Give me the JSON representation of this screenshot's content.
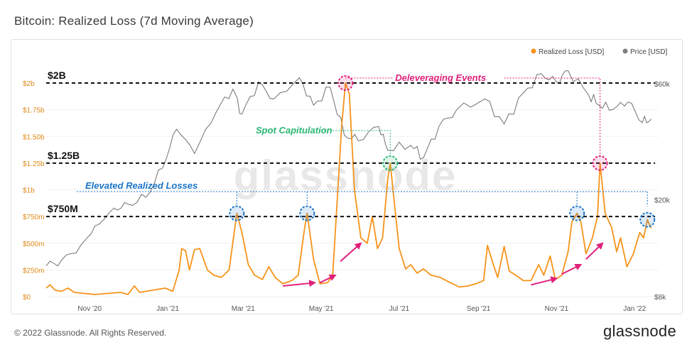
{
  "title": "Bitcoin: Realized Loss (7d Moving Average)",
  "footer": {
    "copyright": "© 2022 Glassnode. All Rights Reserved.",
    "logo": "glassnode"
  },
  "watermark": "glassnode",
  "colors": {
    "loss": "#f7931a",
    "price": "#707070",
    "deleverage": "#e0217b",
    "capitulation": "#2bb673",
    "elevated": "#1a74c8",
    "axis_left": "#e08a1a"
  },
  "chart_data": {
    "type": "line",
    "title": "Bitcoin: Realized Loss (7d Moving Average)",
    "legend": [
      {
        "name": "Realized Loss [USD]",
        "color": "#f7931a"
      },
      {
        "name": "Price [USD]",
        "color": "#808080"
      }
    ],
    "legend_position": "top-right",
    "x_ticks": [
      "Nov '20",
      "Jan '21",
      "Mar '21",
      "May '21",
      "Jul '21",
      "Sep '21",
      "Nov '21",
      "Jan '22"
    ],
    "y_left_ticks": [
      "$0",
      "$250m",
      "$500m",
      "$750m",
      "$1b",
      "$1.25b",
      "$1.50b",
      "$1.75b",
      "$2b"
    ],
    "y_left_range": [
      0,
      2000000000
    ],
    "y_right_ticks": [
      "$8k",
      "$20k",
      "$60k"
    ],
    "y_right_scale": "log",
    "series": [
      {
        "name": "Realized Loss [USD]",
        "unit": "USD",
        "points": [
          [
            "2020-09-28",
            80000000
          ],
          [
            "2020-10-01",
            110000000
          ],
          [
            "2020-10-05",
            60000000
          ],
          [
            "2020-10-10",
            50000000
          ],
          [
            "2020-10-15",
            80000000
          ],
          [
            "2020-10-20",
            40000000
          ],
          [
            "2020-10-28",
            30000000
          ],
          [
            "2020-11-05",
            20000000
          ],
          [
            "2020-11-15",
            30000000
          ],
          [
            "2020-11-25",
            40000000
          ],
          [
            "2020-12-01",
            20000000
          ],
          [
            "2020-12-06",
            100000000
          ],
          [
            "2020-12-10",
            40000000
          ],
          [
            "2020-12-20",
            60000000
          ],
          [
            "2020-12-30",
            80000000
          ],
          [
            "2021-01-05",
            50000000
          ],
          [
            "2021-01-10",
            250000000
          ],
          [
            "2021-01-12",
            450000000
          ],
          [
            "2021-01-15",
            430000000
          ],
          [
            "2021-01-18",
            250000000
          ],
          [
            "2021-01-22",
            440000000
          ],
          [
            "2021-01-26",
            450000000
          ],
          [
            "2021-02-01",
            250000000
          ],
          [
            "2021-02-06",
            200000000
          ],
          [
            "2021-02-12",
            180000000
          ],
          [
            "2021-02-18",
            250000000
          ],
          [
            "2021-02-24",
            780000000
          ],
          [
            "2021-02-28",
            600000000
          ],
          [
            "2021-03-05",
            300000000
          ],
          [
            "2021-03-10",
            200000000
          ],
          [
            "2021-03-16",
            160000000
          ],
          [
            "2021-03-21",
            280000000
          ],
          [
            "2021-03-26",
            180000000
          ],
          [
            "2021-04-01",
            120000000
          ],
          [
            "2021-04-08",
            150000000
          ],
          [
            "2021-04-13",
            200000000
          ],
          [
            "2021-04-18",
            640000000
          ],
          [
            "2021-04-20",
            780000000
          ],
          [
            "2021-04-25",
            350000000
          ],
          [
            "2021-04-30",
            120000000
          ],
          [
            "2021-05-06",
            130000000
          ],
          [
            "2021-05-10",
            200000000
          ],
          [
            "2021-05-14",
            1000000000
          ],
          [
            "2021-05-17",
            1600000000
          ],
          [
            "2021-05-20",
            2000000000
          ],
          [
            "2021-05-23",
            1900000000
          ],
          [
            "2021-05-27",
            1000000000
          ],
          [
            "2021-06-01",
            550000000
          ],
          [
            "2021-06-06",
            500000000
          ],
          [
            "2021-06-10",
            750000000
          ],
          [
            "2021-06-14",
            450000000
          ],
          [
            "2021-06-18",
            550000000
          ],
          [
            "2021-06-22",
            1100000000
          ],
          [
            "2021-06-24",
            1250000000
          ],
          [
            "2021-06-27",
            900000000
          ],
          [
            "2021-07-01",
            450000000
          ],
          [
            "2021-07-06",
            260000000
          ],
          [
            "2021-07-10",
            300000000
          ],
          [
            "2021-07-15",
            220000000
          ],
          [
            "2021-07-20",
            260000000
          ],
          [
            "2021-07-26",
            200000000
          ],
          [
            "2021-08-02",
            180000000
          ],
          [
            "2021-08-10",
            130000000
          ],
          [
            "2021-08-17",
            90000000
          ],
          [
            "2021-08-24",
            100000000
          ],
          [
            "2021-08-30",
            120000000
          ],
          [
            "2021-09-05",
            150000000
          ],
          [
            "2021-09-08",
            480000000
          ],
          [
            "2021-09-12",
            320000000
          ],
          [
            "2021-09-16",
            180000000
          ],
          [
            "2021-09-21",
            470000000
          ],
          [
            "2021-09-25",
            240000000
          ],
          [
            "2021-09-30",
            200000000
          ],
          [
            "2021-10-06",
            150000000
          ],
          [
            "2021-10-12",
            150000000
          ],
          [
            "2021-10-18",
            300000000
          ],
          [
            "2021-10-22",
            200000000
          ],
          [
            "2021-10-27",
            380000000
          ],
          [
            "2021-10-31",
            160000000
          ],
          [
            "2021-11-05",
            200000000
          ],
          [
            "2021-11-10",
            420000000
          ],
          [
            "2021-11-13",
            700000000
          ],
          [
            "2021-11-17",
            780000000
          ],
          [
            "2021-11-20",
            700000000
          ],
          [
            "2021-11-24",
            400000000
          ],
          [
            "2021-11-29",
            550000000
          ],
          [
            "2021-12-03",
            750000000
          ],
          [
            "2021-12-05",
            1250000000
          ],
          [
            "2021-12-09",
            780000000
          ],
          [
            "2021-12-14",
            650000000
          ],
          [
            "2021-12-18",
            420000000
          ],
          [
            "2021-12-21",
            550000000
          ],
          [
            "2021-12-26",
            280000000
          ],
          [
            "2021-12-31",
            400000000
          ],
          [
            "2022-01-05",
            600000000
          ],
          [
            "2022-01-08",
            550000000
          ],
          [
            "2022-01-11",
            720000000
          ],
          [
            "2022-01-14",
            640000000
          ]
        ]
      },
      {
        "name": "Price [USD]",
        "unit": "USD",
        "points": [
          [
            "2020-09-28",
            10700
          ],
          [
            "2020-10-10",
            11300
          ],
          [
            "2020-10-25",
            13000
          ],
          [
            "2020-11-05",
            15600
          ],
          [
            "2020-11-20",
            18500
          ],
          [
            "2020-12-01",
            19200
          ],
          [
            "2020-12-15",
            20500
          ],
          [
            "2020-12-28",
            27000
          ],
          [
            "2021-01-08",
            39000
          ],
          [
            "2021-01-22",
            31000
          ],
          [
            "2021-02-08",
            46000
          ],
          [
            "2021-02-21",
            57000
          ],
          [
            "2021-02-28",
            45000
          ],
          [
            "2021-03-13",
            61000
          ],
          [
            "2021-03-25",
            52000
          ],
          [
            "2021-04-14",
            63500
          ],
          [
            "2021-04-25",
            49000
          ],
          [
            "2021-05-08",
            58000
          ],
          [
            "2021-05-19",
            37000
          ],
          [
            "2021-05-30",
            35000
          ],
          [
            "2021-06-15",
            40000
          ],
          [
            "2021-06-22",
            32000
          ],
          [
            "2021-07-10",
            33500
          ],
          [
            "2021-07-20",
            29800
          ],
          [
            "2021-08-01",
            40000
          ],
          [
            "2021-08-15",
            47000
          ],
          [
            "2021-09-06",
            52000
          ],
          [
            "2021-09-21",
            41000
          ],
          [
            "2021-10-06",
            55000
          ],
          [
            "2021-10-20",
            66000
          ],
          [
            "2021-11-01",
            61000
          ],
          [
            "2021-11-10",
            68000
          ],
          [
            "2021-11-26",
            54000
          ],
          [
            "2021-12-04",
            49000
          ],
          [
            "2021-12-15",
            47000
          ],
          [
            "2021-12-27",
            50500
          ],
          [
            "2022-01-07",
            41500
          ],
          [
            "2022-01-14",
            43000
          ]
        ]
      }
    ],
    "reference_lines": [
      {
        "label": "$2B",
        "value": 2000000000
      },
      {
        "label": "$1.25B",
        "value": 1250000000
      },
      {
        "label": "$750M",
        "value": 750000000
      }
    ],
    "annotations": [
      {
        "text": "Deleveraging Events",
        "color": "#e0217b",
        "dates": [
          "2021-05-20",
          "2021-12-05"
        ]
      },
      {
        "text": "Spot Capitulation",
        "color": "#2bb673",
        "dates": [
          "2021-05-20",
          "2021-06-24"
        ]
      },
      {
        "text": "Elevated Realized Losses",
        "color": "#1a74c8",
        "dates": [
          "2021-02-24",
          "2021-04-20",
          "2021-11-17",
          "2022-01-11"
        ]
      }
    ],
    "highlighted_peaks": [
      {
        "date": "2021-05-20",
        "value": 2000000000,
        "color": "#e0217b"
      },
      {
        "date": "2021-12-05",
        "value": 1250000000,
        "color": "#e0217b"
      },
      {
        "date": "2021-06-24",
        "value": 1250000000,
        "color": "#2bb673"
      },
      {
        "date": "2021-02-24",
        "value": 780000000,
        "color": "#1a74c8"
      },
      {
        "date": "2021-04-20",
        "value": 780000000,
        "color": "#1a74c8"
      },
      {
        "date": "2021-11-17",
        "value": 780000000,
        "color": "#1a74c8"
      },
      {
        "date": "2022-01-11",
        "value": 720000000,
        "color": "#1a74c8"
      }
    ],
    "trend_arrows": [
      {
        "from": [
          "2021-04-01",
          100000000
        ],
        "to": [
          "2021-04-26",
          130000000
        ]
      },
      {
        "from": [
          "2021-04-30",
          130000000
        ],
        "to": [
          "2021-05-12",
          200000000
        ]
      },
      {
        "from": [
          "2021-05-16",
          330000000
        ],
        "to": [
          "2021-06-01",
          500000000
        ]
      },
      {
        "from": [
          "2021-10-12",
          110000000
        ],
        "to": [
          "2021-11-01",
          170000000
        ]
      },
      {
        "from": [
          "2021-11-05",
          210000000
        ],
        "to": [
          "2021-11-20",
          300000000
        ]
      },
      {
        "from": [
          "2021-11-24",
          350000000
        ],
        "to": [
          "2021-12-07",
          500000000
        ]
      }
    ]
  }
}
